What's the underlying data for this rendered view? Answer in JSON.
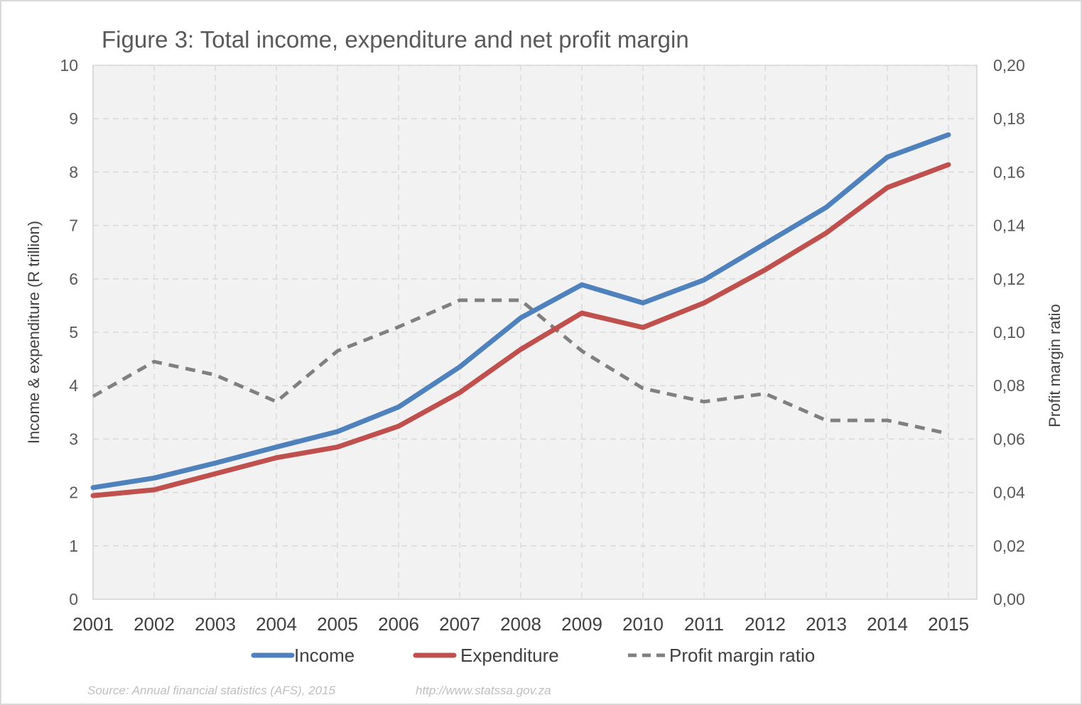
{
  "chart_data": {
    "type": "line",
    "title": "Figure 3: Total income, expenditure and net profit margin",
    "xlabel": "",
    "ylabel": "Income & expenditure (R trillion)",
    "y2label": "Profit margin ratio",
    "x": [
      "2001",
      "2002",
      "2003",
      "2004",
      "2005",
      "2006",
      "2007",
      "2008",
      "2009",
      "2010",
      "2011",
      "2012",
      "2013",
      "2014",
      "2015"
    ],
    "ylim": [
      0,
      10
    ],
    "y2lim": [
      0,
      0.2
    ],
    "yticks": [
      "0",
      "1",
      "2",
      "3",
      "4",
      "5",
      "6",
      "7",
      "8",
      "9",
      "10"
    ],
    "y2ticks": [
      "0,00",
      "0,02",
      "0,04",
      "0,06",
      "0,08",
      "0,10",
      "0,12",
      "0,14",
      "0,16",
      "0,18",
      "0,20"
    ],
    "grid": true,
    "legend_position": "bottom",
    "series": [
      {
        "name": "Income",
        "axis": "left",
        "color": "#4f81bd",
        "style": "solid",
        "values": [
          2.09,
          2.27,
          2.55,
          2.85,
          3.14,
          3.6,
          4.35,
          5.27,
          5.89,
          5.55,
          5.98,
          6.66,
          7.34,
          8.28,
          8.7
        ]
      },
      {
        "name": "Expenditure",
        "axis": "left",
        "color": "#c0504d",
        "style": "solid",
        "values": [
          1.94,
          2.05,
          2.35,
          2.65,
          2.85,
          3.24,
          3.87,
          4.68,
          5.36,
          5.09,
          5.55,
          6.17,
          6.86,
          7.71,
          8.14
        ]
      },
      {
        "name": "Profit margin ratio",
        "axis": "right",
        "color": "#808080",
        "style": "dashed",
        "values": [
          0.076,
          0.089,
          0.084,
          0.074,
          0.093,
          0.102,
          0.112,
          0.112,
          0.093,
          0.079,
          0.074,
          0.077,
          0.067,
          0.067,
          0.062
        ]
      }
    ],
    "source": "Source: Annual financial statistics (AFS), 2015",
    "url": "http://www.statssa.gov.za"
  }
}
